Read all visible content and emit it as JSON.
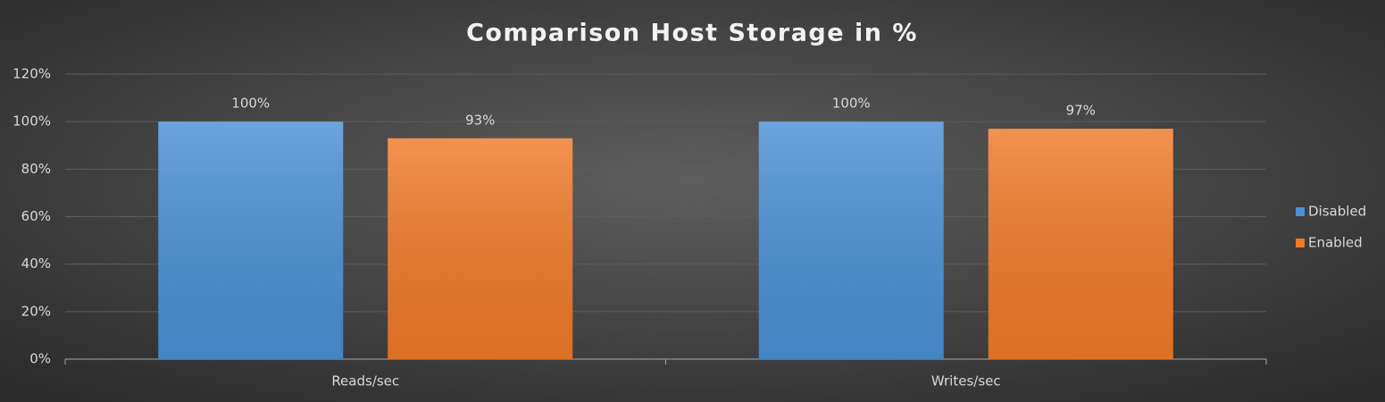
{
  "chart_data": {
    "type": "bar",
    "title": "Comparison Host Storage in %",
    "categories": [
      "Reads/sec",
      "Writes/sec"
    ],
    "series": [
      {
        "name": "Disabled",
        "color": "#4a90d6",
        "values": [
          100,
          100
        ],
        "value_labels": [
          "100%",
          "100%"
        ]
      },
      {
        "name": "Enabled",
        "color": "#f07a28",
        "values": [
          93,
          97
        ],
        "value_labels": [
          "93%",
          "97%"
        ]
      }
    ],
    "ylim": [
      0,
      120
    ],
    "yticks": [
      {
        "value": 0,
        "label": "0%"
      },
      {
        "value": 20,
        "label": "20%"
      },
      {
        "value": 40,
        "label": "40%"
      },
      {
        "value": 60,
        "label": "60%"
      },
      {
        "value": 80,
        "label": "80%"
      },
      {
        "value": 100,
        "label": "100%"
      },
      {
        "value": 120,
        "label": "120%"
      }
    ],
    "grid": true,
    "legend": "right"
  }
}
